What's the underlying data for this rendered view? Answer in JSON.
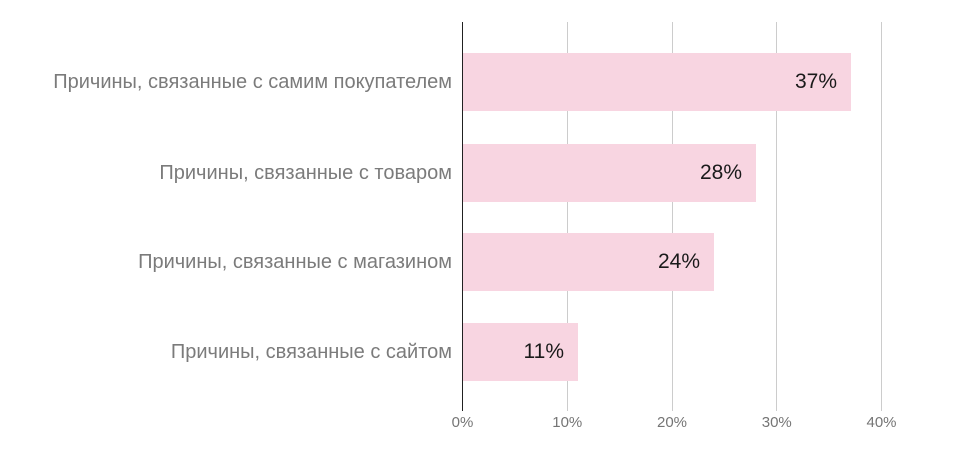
{
  "chart_data": {
    "type": "bar",
    "orientation": "horizontal",
    "categories": [
      "Причины, связанные с самим покупателем",
      "Причины, связанные с товаром",
      "Причины, связанные с магазином",
      "Причины, связанные с сайтом"
    ],
    "values": [
      37,
      28,
      24,
      11
    ],
    "value_labels": [
      "37%",
      "28%",
      "24%",
      "11%"
    ],
    "x_axis": {
      "ticks": [
        "0%",
        "10%",
        "20%",
        "30%",
        "40%"
      ],
      "tick_values": [
        0,
        10,
        20,
        30,
        40
      ],
      "min": 0,
      "max": 40
    },
    "grid": true,
    "legend": "none",
    "colors": {
      "bar": "#f8d5e1",
      "category_label": "#7b7b7b",
      "value_label": "#1a1a1a",
      "tick_label": "#757575",
      "gridline": "#cccccc",
      "axis_line": "#212121",
      "background": "#ffffff"
    }
  }
}
